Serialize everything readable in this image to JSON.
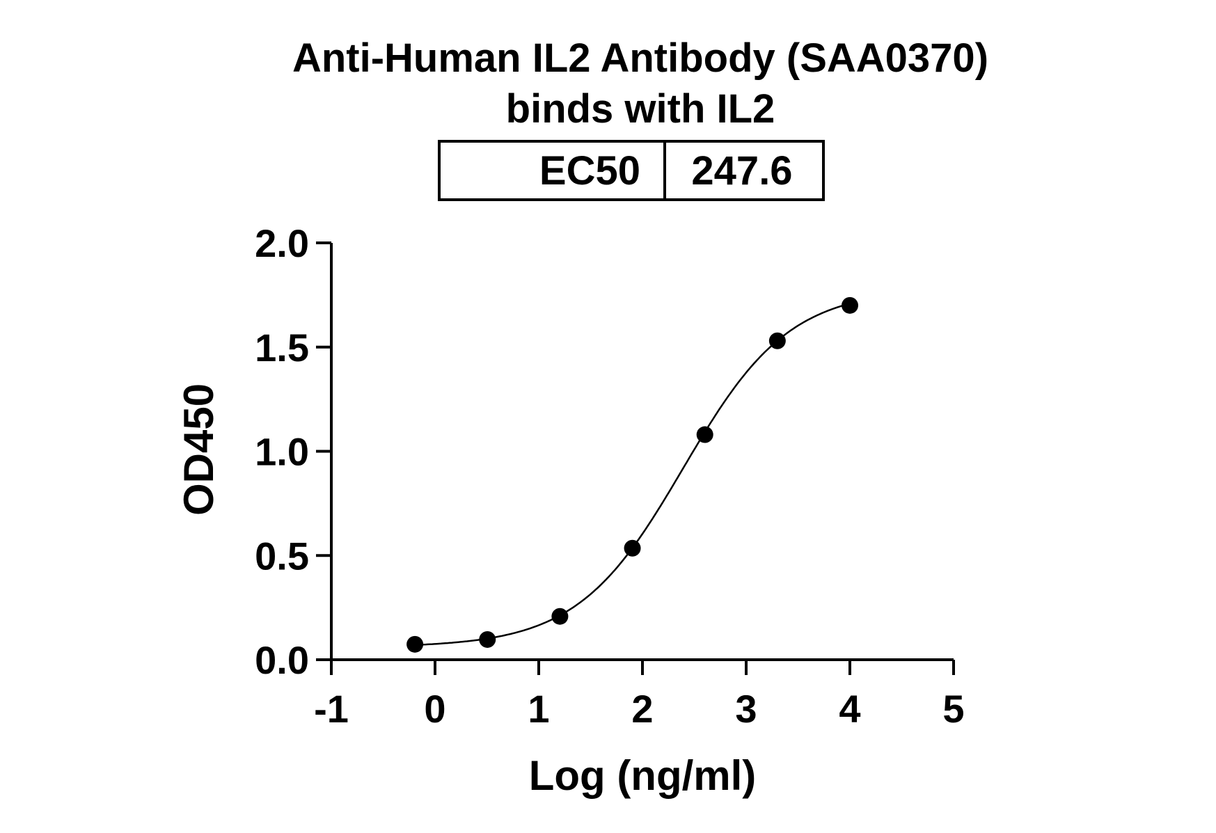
{
  "chart_data": {
    "type": "scatter",
    "title": [
      "Anti-Human IL2 Antibody (SAA0370)",
      "binds with IL2"
    ],
    "xlabel": "Log (ng/ml)",
    "ylabel": "OD450",
    "xlim": [
      -1,
      5
    ],
    "ylim": [
      0,
      2.0
    ],
    "xticks": [
      "-1",
      "0",
      "1",
      "2",
      "3",
      "4",
      "5"
    ],
    "yticks": [
      "0.0",
      "0.5",
      "1.0",
      "1.5",
      "2.0"
    ],
    "grid": false,
    "ec50_table": {
      "label": "EC50",
      "value": "247.6"
    },
    "series": [
      {
        "x": [
          -0.194,
          0.505,
          1.204,
          1.903,
          2.602,
          3.301,
          4.0
        ],
        "y": [
          0.074,
          0.097,
          0.208,
          0.535,
          1.08,
          1.53,
          1.7
        ],
        "fit": {
          "model": "4PL",
          "bottom": 0.06,
          "top": 1.78,
          "logEC50": 2.394,
          "hill": 0.85
        }
      }
    ],
    "colors": {
      "line": "#000000",
      "marker": "#000000"
    }
  }
}
